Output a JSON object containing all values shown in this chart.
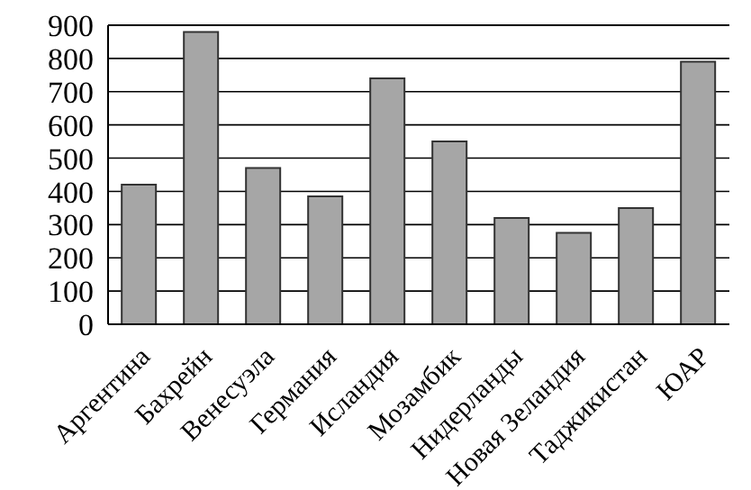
{
  "chart_data": {
    "type": "bar",
    "categories": [
      "Аргентина",
      "Бахрейн",
      "Венесуэла",
      "Германия",
      "Исландия",
      "Мозамбик",
      "Нидерланды",
      "Новая Зеландия",
      "Таджикистан",
      "ЮАР"
    ],
    "values": [
      420,
      880,
      470,
      385,
      740,
      550,
      320,
      275,
      350,
      790
    ],
    "color": "#a6a6a6",
    "ylim": [
      0,
      900
    ],
    "yticks": [
      0,
      100,
      200,
      300,
      400,
      500,
      600,
      700,
      800,
      900
    ],
    "grid": "y"
  }
}
